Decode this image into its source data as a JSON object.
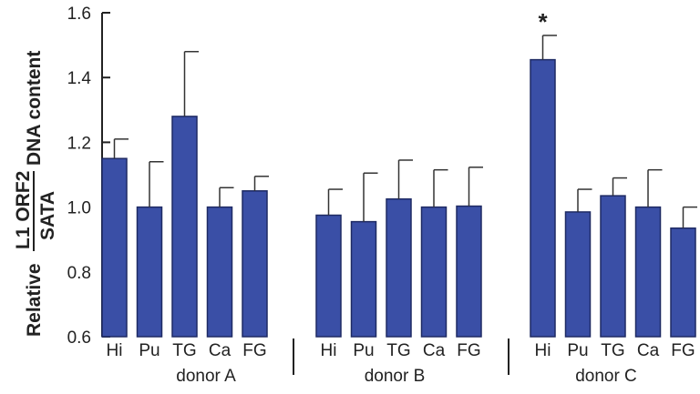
{
  "chart_data": {
    "type": "bar",
    "ylabel": {
      "prefix": "Relative",
      "numerator": "L1 ORF2",
      "denominator": "SATA",
      "suffix": "DNA content"
    },
    "ylim": [
      0.6,
      1.6
    ],
    "yticks": [
      "0.6",
      "0.8",
      "1.0",
      "1.2",
      "1.4",
      "1.6"
    ],
    "grid": false,
    "legend": "none",
    "bar_color": "#3a4fa6",
    "groups": [
      {
        "name": "donor A",
        "categories": [
          "Hi",
          "Pu",
          "TG",
          "Ca",
          "FG"
        ],
        "values": [
          1.15,
          1.0,
          1.28,
          1.0,
          1.05
        ],
        "errors": [
          0.06,
          0.14,
          0.2,
          0.06,
          0.045
        ],
        "annotations": [
          "",
          "",
          "",
          "",
          ""
        ]
      },
      {
        "name": "donor B",
        "categories": [
          "Hi",
          "Pu",
          "TG",
          "Ca",
          "FG"
        ],
        "values": [
          0.975,
          0.955,
          1.025,
          1.0,
          1.003
        ],
        "errors": [
          0.08,
          0.15,
          0.12,
          0.115,
          0.12
        ],
        "annotations": [
          "",
          "",
          "",
          "",
          ""
        ]
      },
      {
        "name": "donor C",
        "categories": [
          "Hi",
          "Pu",
          "TG",
          "Ca",
          "FG"
        ],
        "values": [
          1.455,
          0.985,
          1.035,
          1.0,
          0.935
        ],
        "errors": [
          0.075,
          0.07,
          0.055,
          0.115,
          0.065
        ],
        "annotations": [
          "*",
          "",
          "",
          "",
          ""
        ]
      }
    ]
  }
}
